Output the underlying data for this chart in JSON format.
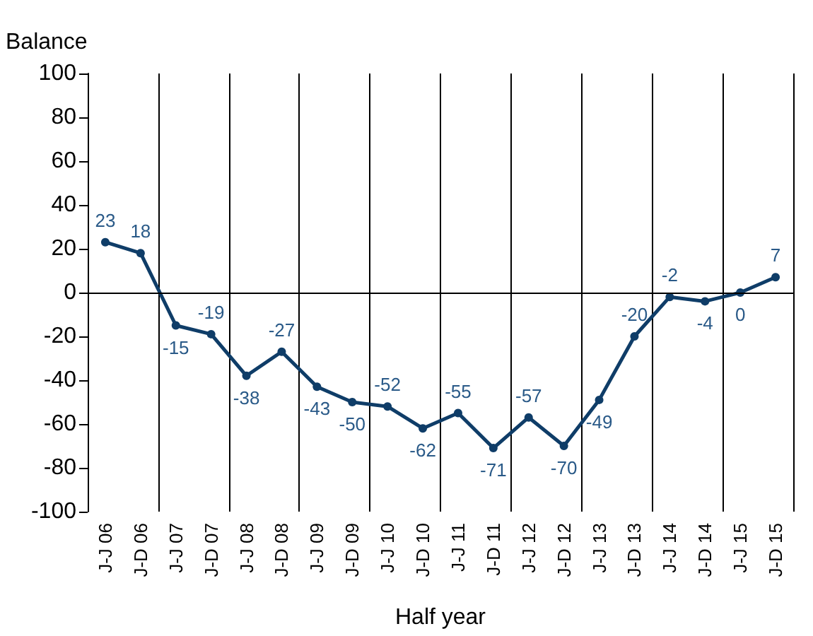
{
  "chart_data": {
    "type": "line",
    "xlabel": "Half year",
    "ylabel": "Balance",
    "categories": [
      "J-J 06",
      "J-D 06",
      "J-J 07",
      "J-D 07",
      "J-J 08",
      "J-D 08",
      "J-J 09",
      "J-D 09",
      "J-J 10",
      "J-D 10",
      "J-J 11",
      "J-D 11",
      "J-J 12",
      "J-D 12",
      "J-J 13",
      "J-D 13",
      "J-J 14",
      "J-D 14",
      "J-J 15",
      "J-D 15"
    ],
    "series": [
      {
        "color": "#0f3d68",
        "values": [
          23,
          18,
          -15,
          -19,
          -38,
          -27,
          -43,
          -50,
          -52,
          -62,
          -55,
          -71,
          -57,
          -70,
          -49,
          -20,
          -2,
          -4,
          0,
          7
        ]
      }
    ],
    "ylim": [
      -100,
      100
    ],
    "yticks": [
      -100,
      -80,
      -60,
      -40,
      -20,
      0,
      20,
      40,
      60,
      80,
      100
    ],
    "ref_lines": [
      {
        "axis": "y",
        "value": 0
      }
    ],
    "grid": "x",
    "marker": "circle",
    "line_style": "solid",
    "data_labels": true
  }
}
